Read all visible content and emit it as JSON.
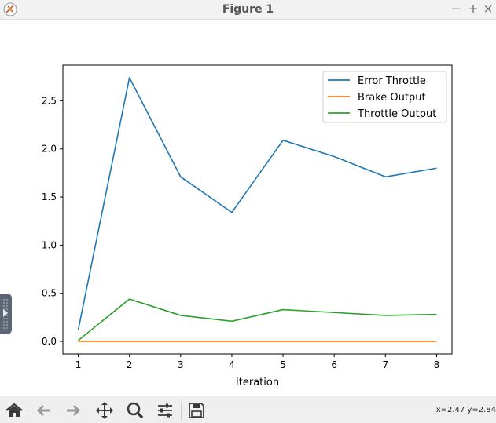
{
  "window": {
    "title": "Figure 1",
    "minimize": "−",
    "maximize": "+",
    "close": "×"
  },
  "toolbar": {
    "buttons": [
      "home",
      "back",
      "forward",
      "pan",
      "zoom",
      "configure-subplots",
      "save"
    ],
    "coords": "x=2.47 y=2.84"
  },
  "chart_data": {
    "type": "line",
    "xlabel": "Iteration",
    "ylabel": "",
    "title": "",
    "x": [
      1,
      2,
      3,
      4,
      5,
      6,
      7,
      8
    ],
    "xlim": [
      0.7,
      8.3
    ],
    "ylim": [
      -0.13,
      2.87
    ],
    "xticks": [
      1,
      2,
      3,
      4,
      5,
      6,
      7,
      8
    ],
    "yticks": [
      0.0,
      0.5,
      1.0,
      1.5,
      2.0,
      2.5
    ],
    "ytick_labels": [
      "0.0",
      "0.5",
      "1.0",
      "1.5",
      "2.0",
      "2.5"
    ],
    "legend_position": "top-right",
    "series": [
      {
        "name": "Error Throttle",
        "color": "#1f77b4",
        "values": [
          0.12,
          2.74,
          1.71,
          1.34,
          2.09,
          1.92,
          1.71,
          1.8
        ]
      },
      {
        "name": "Brake Output",
        "color": "#ff7f0e",
        "values": [
          0.0,
          0.0,
          0.0,
          0.0,
          0.0,
          0.0,
          0.0,
          0.0
        ]
      },
      {
        "name": "Throttle Output",
        "color": "#2ca02c",
        "values": [
          0.01,
          0.44,
          0.27,
          0.21,
          0.33,
          0.3,
          0.27,
          0.28
        ]
      }
    ]
  }
}
